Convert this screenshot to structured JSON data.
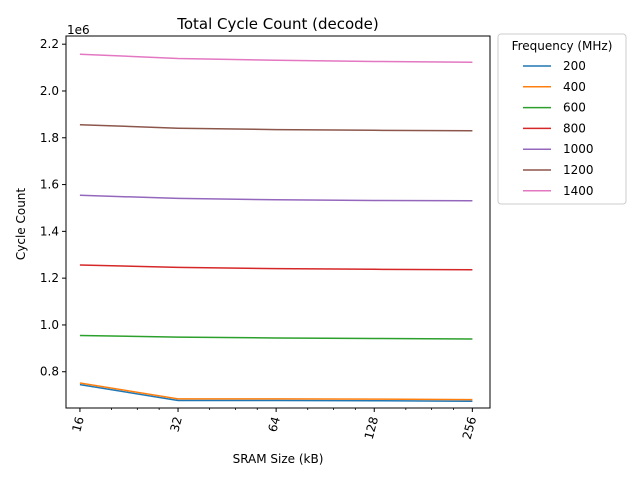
{
  "chart_data": {
    "type": "line",
    "title": "Total Cycle Count (decode)",
    "xlabel": "SRAM Size (kB)",
    "ylabel": "Cycle Count",
    "y_scale_label": "1e6",
    "x_scale": "log2",
    "x": [
      16,
      32,
      64,
      128,
      256
    ],
    "x_tick_labels": [
      "16",
      "32",
      "64",
      "128",
      "256"
    ],
    "xlim": [
      14.5,
      290
    ],
    "y_ticks": [
      0.8,
      1.0,
      1.2,
      1.4,
      1.6,
      1.8,
      2.0,
      2.2
    ],
    "y_tick_labels": [
      "0.8",
      "1.0",
      "1.2",
      "1.4",
      "1.6",
      "1.8",
      "2.0",
      "2.2"
    ],
    "ylim": [
      0.645,
      2.235
    ],
    "legend_title": "Frequency (MHz)",
    "legend_position": "outside-right",
    "grid": false,
    "series": [
      {
        "name": "200",
        "color": "#1f77b4",
        "values": [
          0.745,
          0.677,
          0.677,
          0.676,
          0.674
        ]
      },
      {
        "name": "400",
        "color": "#ff7f0e",
        "values": [
          0.752,
          0.684,
          0.684,
          0.683,
          0.681
        ]
      },
      {
        "name": "600",
        "color": "#2ca02c",
        "values": [
          0.955,
          0.948,
          0.944,
          0.942,
          0.94
        ]
      },
      {
        "name": "800",
        "color": "#d62728",
        "values": [
          1.256,
          1.246,
          1.241,
          1.238,
          1.236
        ]
      },
      {
        "name": "1000",
        "color": "#9467bd",
        "values": [
          1.554,
          1.541,
          1.535,
          1.532,
          1.531
        ]
      },
      {
        "name": "1200",
        "color": "#8c564b",
        "values": [
          1.856,
          1.841,
          1.835,
          1.832,
          1.83
        ]
      },
      {
        "name": "1400",
        "color": "#e377c2",
        "values": [
          2.157,
          2.139,
          2.131,
          2.126,
          2.123
        ]
      }
    ]
  }
}
